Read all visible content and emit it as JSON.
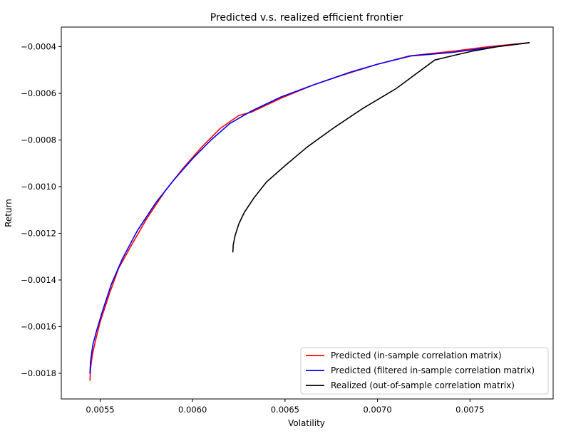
{
  "chart_data": {
    "type": "line",
    "title": "Predicted v.s. realized efficient frontier",
    "xlabel": "Volatility",
    "ylabel": "Return",
    "xlim": [
      0.00529,
      0.00795
    ],
    "ylim": [
      -0.00191,
      -0.000316
    ],
    "xticks": [
      0.0055,
      0.006,
      0.0065,
      0.007,
      0.0075
    ],
    "xtick_labels": [
      "0.0055",
      "0.0060",
      "0.0065",
      "0.0070",
      "0.0075"
    ],
    "yticks": [
      -0.0018,
      -0.0016,
      -0.0014,
      -0.0012,
      -0.001,
      -0.0008,
      -0.0006,
      -0.0004
    ],
    "ytick_labels": [
      "−0.0018",
      "−0.0016",
      "−0.0014",
      "−0.0012",
      "−0.0010",
      "−0.0008",
      "−0.0006",
      "−0.0004"
    ],
    "grid": false,
    "legend_position": "bottom-right",
    "series": [
      {
        "name": "Predicted (in-sample correlation matrix)",
        "color": "#ff0000",
        "x": [
          0.005445,
          0.005448,
          0.005458,
          0.005475,
          0.0055,
          0.00555,
          0.0056,
          0.00567,
          0.00575,
          0.00585,
          0.00595,
          0.00605,
          0.00615,
          0.00625,
          0.00632,
          0.00648,
          0.00665,
          0.0068,
          0.007,
          0.00717,
          0.0074,
          0.0076,
          0.00782
        ],
        "y": [
          -0.00183,
          -0.00178,
          -0.00172,
          -0.00166,
          -0.00158,
          -0.00146,
          -0.00135,
          -0.00125,
          -0.00114,
          -0.00102,
          -0.00092,
          -0.00083,
          -0.00075,
          -0.000695,
          -0.00068,
          -0.00062,
          -0.000565,
          -0.000525,
          -0.000475,
          -0.00044,
          -0.00042,
          -0.0004,
          -0.000383
        ]
      },
      {
        "name": "Predicted (filtered in-sample correlation matrix)",
        "color": "#0000ff",
        "x": [
          0.005445,
          0.005448,
          0.00546,
          0.00548,
          0.00551,
          0.00556,
          0.00562,
          0.0057,
          0.0058,
          0.0059,
          0.006,
          0.0061,
          0.0062,
          0.00632,
          0.00648,
          0.00665,
          0.00685,
          0.007,
          0.00718,
          0.0074,
          0.0076,
          0.00782
        ],
        "y": [
          -0.0018,
          -0.00175,
          -0.00168,
          -0.00162,
          -0.00154,
          -0.00142,
          -0.00131,
          -0.00119,
          -0.00107,
          -0.00097,
          -0.00088,
          -0.0008,
          -0.00073,
          -0.000675,
          -0.000615,
          -0.000565,
          -0.00051,
          -0.000475,
          -0.00044,
          -0.000425,
          -0.000405,
          -0.000383
        ]
      },
      {
        "name": "Realized (out-of-sample correlation matrix)",
        "color": "#000000",
        "x": [
          0.006218,
          0.00622,
          0.00623,
          0.00625,
          0.00628,
          0.00633,
          0.0064,
          0.0065,
          0.00662,
          0.00676,
          0.00692,
          0.0071,
          0.00731,
          0.0074,
          0.00752,
          0.00765,
          0.00782
        ],
        "y": [
          -0.00128,
          -0.00125,
          -0.00121,
          -0.00116,
          -0.00111,
          -0.00105,
          -0.00098,
          -0.00091,
          -0.00083,
          -0.00075,
          -0.000665,
          -0.00058,
          -0.000457,
          -0.00044,
          -0.000418,
          -0.0004,
          -0.000383
        ]
      }
    ]
  }
}
